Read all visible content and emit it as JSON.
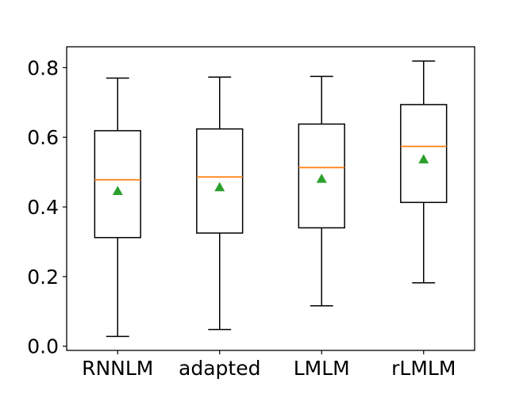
{
  "chart_data": {
    "type": "box",
    "title": "",
    "xlabel": "",
    "ylabel": "",
    "categories": [
      "RNNLM",
      "adapted",
      "LMLM",
      "rLMLM"
    ],
    "ylim": [
      -0.012,
      0.86
    ],
    "yticks": [
      0.0,
      0.2,
      0.4,
      0.6,
      0.8
    ],
    "ytick_labels": [
      "0.0",
      "0.2",
      "0.4",
      "0.6",
      "0.8"
    ],
    "grid": false,
    "boxes": [
      {
        "name": "RNNLM",
        "whisker_low": 0.028,
        "q1": 0.312,
        "median": 0.478,
        "q3": 0.619,
        "whisker_high": 0.77,
        "mean": 0.446
      },
      {
        "name": "adapted",
        "whisker_low": 0.048,
        "q1": 0.325,
        "median": 0.486,
        "q3": 0.624,
        "whisker_high": 0.773,
        "mean": 0.457
      },
      {
        "name": "LMLM",
        "whisker_low": 0.116,
        "q1": 0.34,
        "median": 0.513,
        "q3": 0.638,
        "whisker_high": 0.775,
        "mean": 0.481
      },
      {
        "name": "rLMLM",
        "whisker_low": 0.182,
        "q1": 0.413,
        "median": 0.574,
        "q3": 0.694,
        "whisker_high": 0.819,
        "mean": 0.537
      }
    ],
    "colors": {
      "box": "#000000",
      "median": "#ff7f0e",
      "mean": "#2ca02c"
    }
  }
}
